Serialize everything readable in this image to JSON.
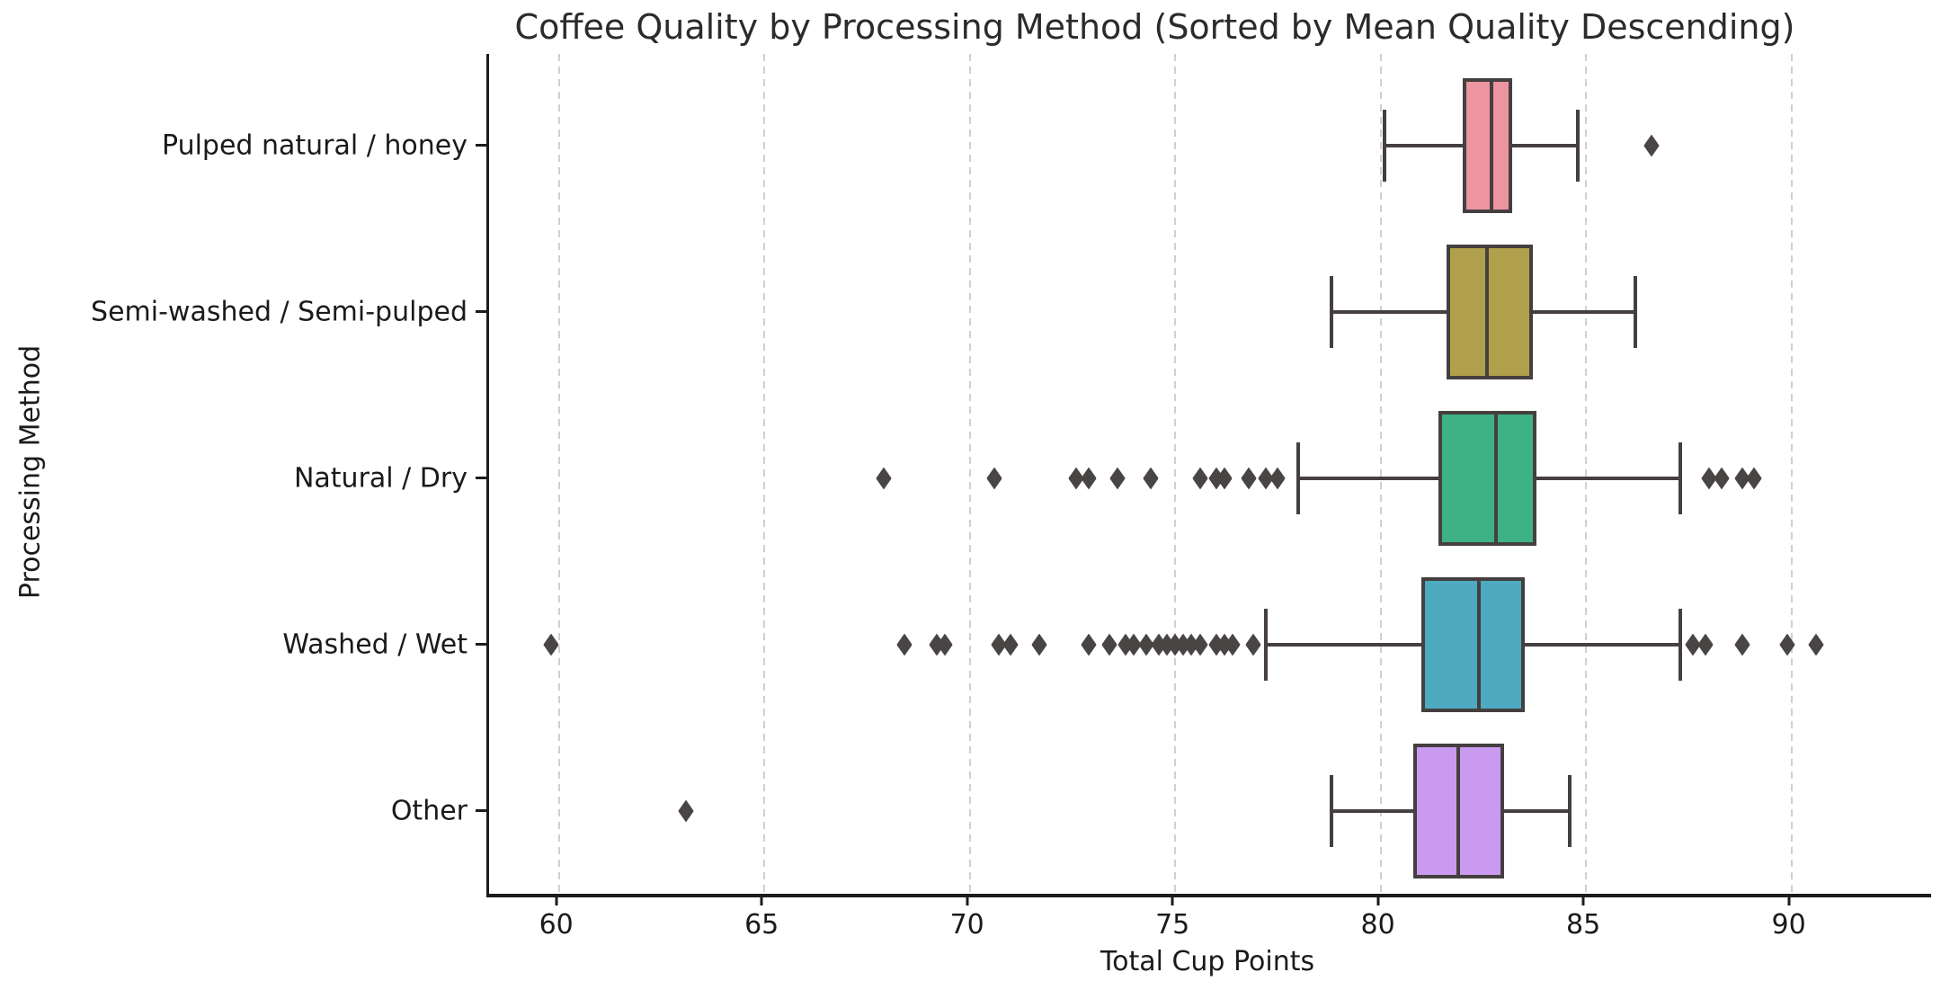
{
  "chart_data": {
    "type": "box",
    "orientation": "horizontal",
    "title": "Coffee Quality by Processing Method (Sorted by Mean Quality Descending)",
    "xlabel": "Total Cup Points",
    "ylabel": "Processing Method",
    "xlim": [
      58.3,
      93.4
    ],
    "xticks": [
      60,
      65,
      70,
      75,
      80,
      85,
      90
    ],
    "grid": "vertical-dashed",
    "legend": "none",
    "outlier_marker": "diamond",
    "line_color": "#453f3f",
    "categories": [
      "Pulped natural / honey",
      "Semi-washed / Semi-pulped",
      "Natural / Dry",
      "Washed / Wet",
      "Other"
    ],
    "series": [
      {
        "label": "Pulped natural / honey",
        "color": "#ec94a0",
        "whisker_low": 80.1,
        "q1": 82.0,
        "median": 82.7,
        "q3": 83.2,
        "whisker_high": 84.8,
        "outliers": [
          86.6
        ]
      },
      {
        "label": "Semi-washed / Semi-pulped",
        "color": "#b1a04b",
        "whisker_low": 78.8,
        "q1": 81.6,
        "median": 82.6,
        "q3": 83.7,
        "whisker_high": 86.2,
        "outliers": []
      },
      {
        "label": "Natural / Dry",
        "color": "#3eb285",
        "whisker_low": 78.0,
        "q1": 81.4,
        "median": 82.8,
        "q3": 83.8,
        "whisker_high": 87.3,
        "outliers": [
          67.9,
          70.6,
          72.6,
          72.9,
          73.6,
          74.4,
          75.6,
          76.0,
          76.2,
          76.8,
          77.2,
          77.5,
          88.0,
          88.3,
          88.8,
          89.1
        ]
      },
      {
        "label": "Washed / Wet",
        "color": "#4daac1",
        "whisker_low": 77.2,
        "q1": 81.0,
        "median": 82.4,
        "q3": 83.5,
        "whisker_high": 87.3,
        "outliers": [
          59.8,
          68.4,
          69.2,
          69.4,
          70.7,
          71.0,
          71.7,
          72.9,
          73.4,
          73.8,
          74.0,
          74.3,
          74.6,
          74.8,
          75.0,
          75.2,
          75.4,
          75.6,
          76.0,
          76.2,
          76.4,
          76.9,
          87.6,
          87.9,
          88.8,
          89.9,
          90.6
        ]
      },
      {
        "label": "Other",
        "color": "#c99af0",
        "whisker_low": 78.8,
        "q1": 80.8,
        "median": 81.9,
        "q3": 83.0,
        "whisker_high": 84.6,
        "outliers": [
          63.1
        ]
      }
    ]
  }
}
